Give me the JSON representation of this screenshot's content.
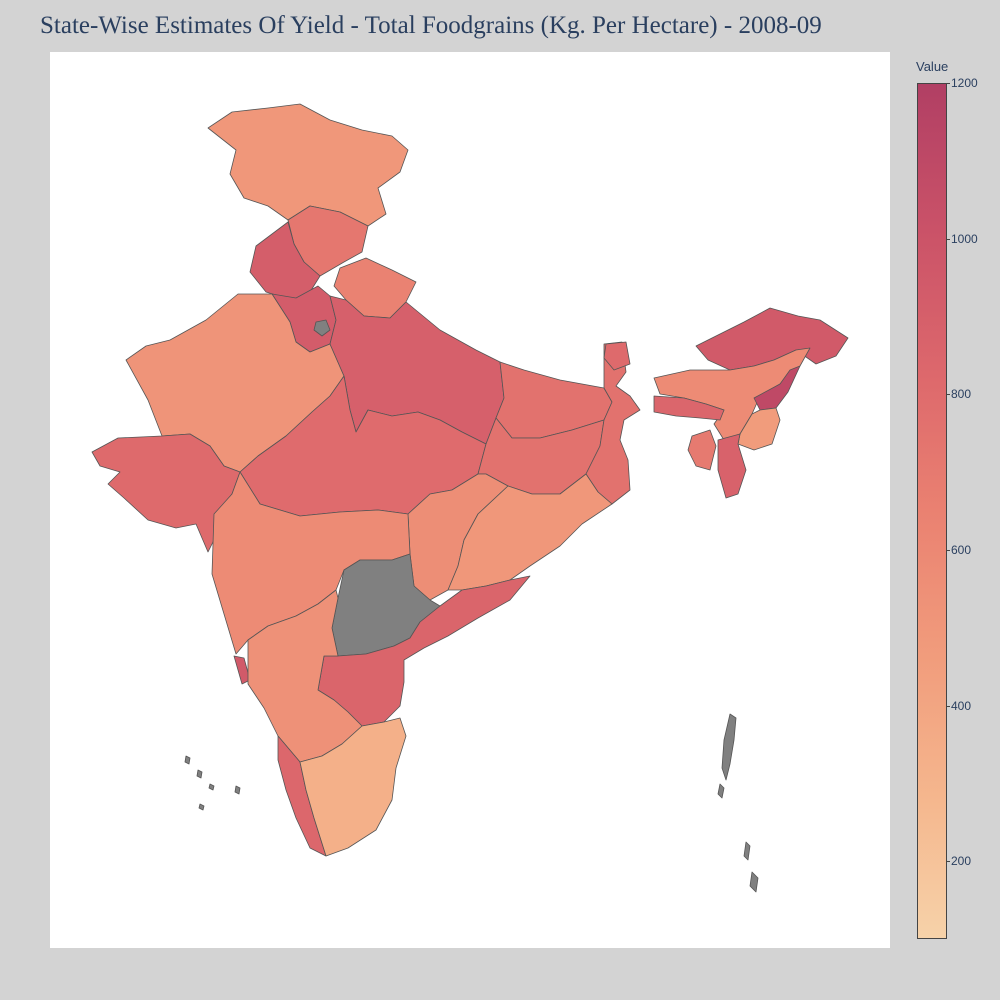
{
  "title": "State-Wise Estimates Of Yield - Total Foodgrains (Kg. Per Hectare) - 2008-09",
  "colorbar": {
    "title": "Value",
    "min": 100,
    "max": 1200,
    "ticks": [
      200,
      400,
      600,
      800,
      1000,
      1200
    ],
    "colors": [
      "#f6d2a9",
      "#f5b78e",
      "#f19c7c",
      "#ea8171",
      "#dd686c",
      "#ca5268",
      "#b13f64"
    ]
  },
  "map": {
    "missing_color": "#808080",
    "regions": [
      {
        "name": "Jammu and Kashmir",
        "value": 500
      },
      {
        "name": "Himachal Pradesh",
        "value": 720
      },
      {
        "name": "Punjab",
        "value": 920
      },
      {
        "name": "Uttarakhand",
        "value": 640
      },
      {
        "name": "Haryana",
        "value": 930
      },
      {
        "name": "Delhi",
        "value": null
      },
      {
        "name": "Rajasthan",
        "value": 520
      },
      {
        "name": "Uttar Pradesh",
        "value": 900
      },
      {
        "name": "Gujarat",
        "value": 820
      },
      {
        "name": "Madhya Pradesh",
        "value": 810
      },
      {
        "name": "Bihar",
        "value": 760
      },
      {
        "name": "Jharkhand",
        "value": 760
      },
      {
        "name": "West Bengal",
        "value": 760
      },
      {
        "name": "Chhattisgarh",
        "value": 560
      },
      {
        "name": "Odisha",
        "value": 500
      },
      {
        "name": "Maharashtra",
        "value": 580
      },
      {
        "name": "Telangana",
        "value": null
      },
      {
        "name": "Andhra Pradesh",
        "value": 860
      },
      {
        "name": "Karnataka",
        "value": 540
      },
      {
        "name": "Goa",
        "value": 950
      },
      {
        "name": "Kerala",
        "value": 840
      },
      {
        "name": "Tamil Nadu",
        "value": 330
      },
      {
        "name": "Sikkim",
        "value": 820
      },
      {
        "name": "Arunachal Pradesh",
        "value": 950
      },
      {
        "name": "Assam",
        "value": 580
      },
      {
        "name": "Meghalaya",
        "value": 850
      },
      {
        "name": "Nagaland",
        "value": 1100
      },
      {
        "name": "Manipur",
        "value": 470
      },
      {
        "name": "Tripura",
        "value": 700
      },
      {
        "name": "Mizoram",
        "value": 880
      },
      {
        "name": "Andaman and Nicobar Islands",
        "value": null
      },
      {
        "name": "Lakshadweep",
        "value": null
      }
    ]
  }
}
